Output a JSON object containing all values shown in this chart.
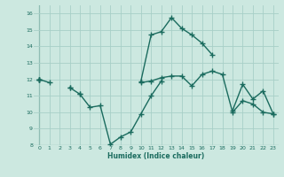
{
  "xlabel": "Humidex (Indice chaleur)",
  "xlim": [
    -0.5,
    23.5
  ],
  "ylim": [
    8,
    16.5
  ],
  "yticks": [
    8,
    9,
    10,
    11,
    12,
    13,
    14,
    15,
    16
  ],
  "xticks": [
    0,
    1,
    2,
    3,
    4,
    5,
    6,
    7,
    8,
    9,
    10,
    11,
    12,
    13,
    14,
    15,
    16,
    17,
    18,
    19,
    20,
    21,
    22,
    23
  ],
  "bg_color": "#cce8e0",
  "grid_color": "#a8cfc7",
  "line_color": "#1a6b5e",
  "line_width": 1.0,
  "marker": "+",
  "marker_size": 4.0,
  "series": [
    [
      12.0,
      11.8,
      null,
      11.5,
      11.1,
      10.3,
      10.4,
      8.05,
      8.5,
      8.8,
      9.9,
      11.0,
      11.9,
      null,
      null,
      null,
      null,
      null,
      null,
      null,
      null,
      null,
      null,
      null
    ],
    [
      12.0,
      null,
      null,
      null,
      11.1,
      null,
      null,
      null,
      null,
      null,
      11.8,
      11.9,
      12.1,
      12.2,
      12.2,
      11.6,
      12.3,
      12.5,
      12.3,
      10.0,
      10.7,
      10.5,
      10.0,
      9.9
    ],
    [
      12.0,
      null,
      null,
      11.5,
      null,
      null,
      null,
      null,
      null,
      null,
      11.9,
      14.7,
      14.9,
      15.75,
      15.1,
      14.7,
      14.2,
      13.5,
      null,
      null,
      null,
      null,
      null,
      null
    ],
    [
      12.0,
      null,
      null,
      null,
      null,
      null,
      null,
      null,
      null,
      null,
      null,
      null,
      null,
      null,
      null,
      null,
      null,
      null,
      null,
      10.1,
      11.7,
      10.8,
      11.3,
      9.9
    ]
  ]
}
